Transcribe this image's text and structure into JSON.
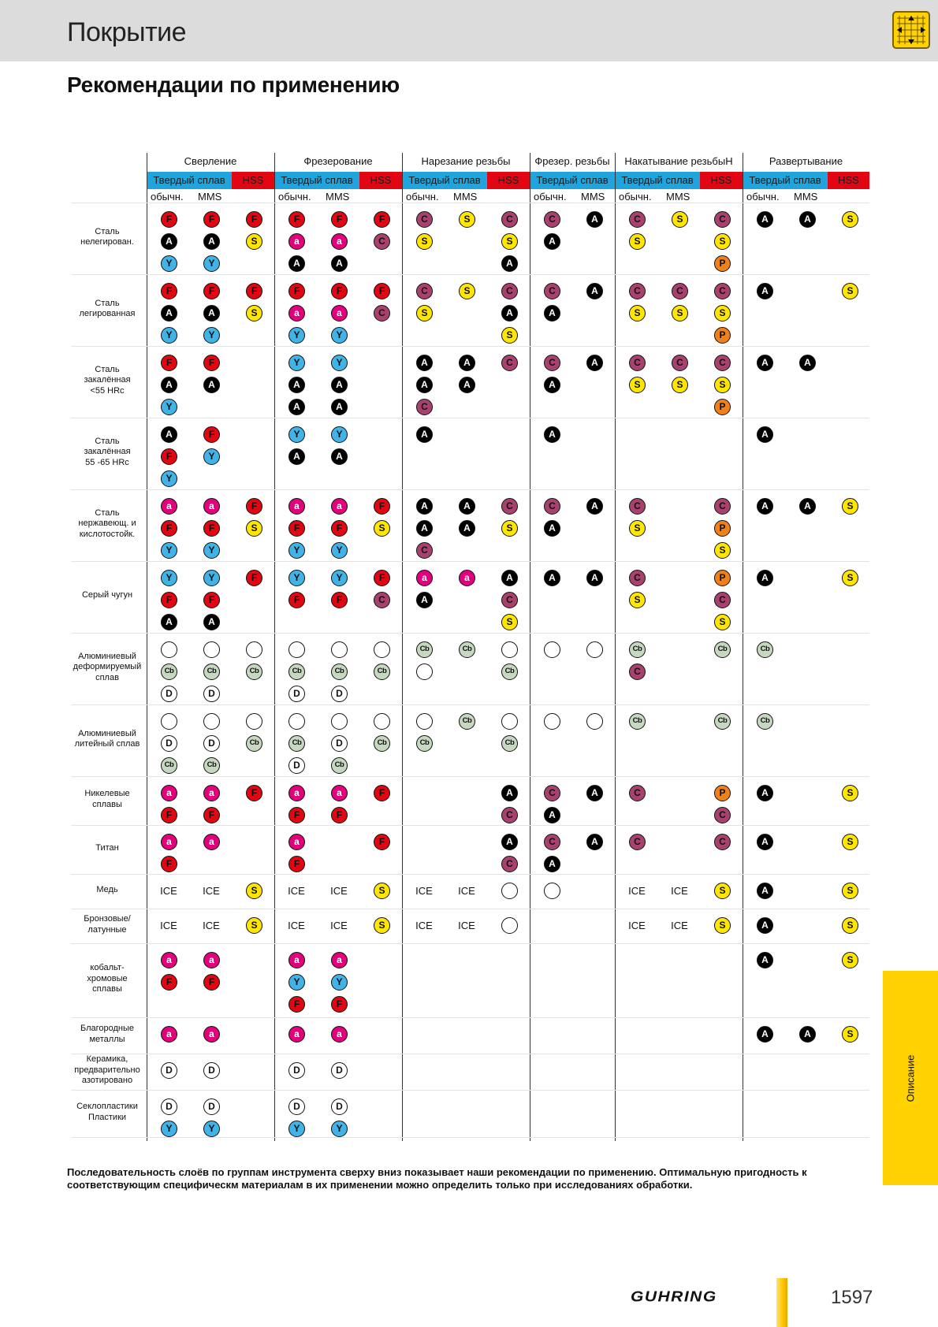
{
  "header": {
    "section_title": "Покрытие",
    "heading": "Рекомендации по применению",
    "icon": "grid-tool-icon"
  },
  "column_groups": [
    {
      "label": "Сверление",
      "subheaders": [
        "Твердый сплав",
        "HSS"
      ]
    },
    {
      "label": "Фрезерование",
      "subheaders": [
        "Твердый сплав",
        "HSS"
      ]
    },
    {
      "label": "Нарезание резьбы",
      "subheaders": [
        "Твердый сплав",
        "HSS"
      ]
    },
    {
      "label": "Фрезер. резьбы",
      "subheaders": [
        "Твердый сплав"
      ]
    },
    {
      "label": "Накатывание резьбыН",
      "subheaders": [
        "Твердый сплав",
        "HSS"
      ]
    },
    {
      "label": "Развертывание",
      "subheaders": [
        "Твердый сплав",
        "HSS"
      ]
    }
  ],
  "coolant_labels": {
    "normal": "обычн.",
    "mms": "MMS"
  },
  "coating_colors": {
    "F": {
      "bg": "#e20613",
      "fg": "#111111"
    },
    "A": {
      "bg": "#000000",
      "fg": "#ffffff"
    },
    "a": {
      "bg": "#e3007d",
      "fg": "#ffffff"
    },
    "Y": {
      "bg": "#41b3e6",
      "fg": "#111111"
    },
    "S": {
      "bg": "#ffe600",
      "fg": "#111111"
    },
    "C": {
      "bg": "#a9416e",
      "fg": "#111111"
    },
    "P": {
      "bg": "#f08019",
      "fg": "#111111"
    },
    "Cb": {
      "bg": "#c6d8bf",
      "fg": "#111111"
    },
    "D": {
      "bg": "#ffffff",
      "fg": "#111111"
    },
    "O": {
      "bg": "#ffffff",
      "fg": "#111111"
    }
  },
  "rows": [
    {
      "material": "Сталь\nнелегирован.",
      "cells": [
        [
          "F",
          "A",
          "Y"
        ],
        [
          "F",
          "A",
          "Y"
        ],
        [
          "F",
          "S"
        ],
        [
          "F",
          "a",
          "A"
        ],
        [
          "F",
          "a",
          "A"
        ],
        [
          "F",
          "C"
        ],
        [
          "C",
          "S"
        ],
        [
          "S"
        ],
        [
          "C",
          "S",
          "A"
        ],
        [
          "C",
          "A"
        ],
        [
          "A"
        ],
        [
          "C",
          "S"
        ],
        [
          "S"
        ],
        [
          "C",
          "S",
          "P"
        ],
        [
          "A"
        ],
        [
          "A"
        ],
        [
          "S"
        ]
      ]
    },
    {
      "material": "Сталь\nлегированная",
      "cells": [
        [
          "F",
          "A",
          "Y"
        ],
        [
          "F",
          "A",
          "Y"
        ],
        [
          "F",
          "S"
        ],
        [
          "F",
          "a",
          "Y"
        ],
        [
          "F",
          "a",
          "Y"
        ],
        [
          "F",
          "C"
        ],
        [
          "C",
          "S"
        ],
        [
          "S"
        ],
        [
          "C",
          "A",
          "S"
        ],
        [
          "C",
          "A"
        ],
        [
          "A"
        ],
        [
          "C",
          "S"
        ],
        [
          "C",
          "S"
        ],
        [
          "C",
          "S",
          "P"
        ],
        [
          "A"
        ],
        [],
        [
          "S"
        ]
      ]
    },
    {
      "material": "Сталь\nзакалённая\n<55 HRc",
      "cells": [
        [
          "F",
          "A",
          "Y"
        ],
        [
          "F",
          "A"
        ],
        [],
        [
          "Y",
          "A",
          "A"
        ],
        [
          "Y",
          "A",
          "A"
        ],
        [],
        [
          "A",
          "A",
          "C"
        ],
        [
          "A",
          "A"
        ],
        [
          "C"
        ],
        [
          "C",
          "A"
        ],
        [
          "A"
        ],
        [
          "C",
          "S"
        ],
        [
          "C",
          "S"
        ],
        [
          "C",
          "S",
          "P"
        ],
        [
          "A"
        ],
        [
          "A"
        ],
        []
      ]
    },
    {
      "material": "Сталь\nзакалённая\n55 -65 HRc",
      "cells": [
        [
          "A",
          "F",
          "Y"
        ],
        [
          "F",
          "Y"
        ],
        [],
        [
          "Y",
          "A"
        ],
        [
          "Y",
          "A"
        ],
        [],
        [
          "A"
        ],
        [],
        [],
        [
          "A"
        ],
        [],
        [],
        [],
        [],
        [
          "A"
        ],
        [],
        []
      ]
    },
    {
      "material": "Сталь\nнержавеющ. и\nкислотостойк.",
      "cells": [
        [
          "a",
          "F",
          "Y"
        ],
        [
          "a",
          "F",
          "Y"
        ],
        [
          "F",
          "S"
        ],
        [
          "a",
          "F",
          "Y"
        ],
        [
          "a",
          "F",
          "Y"
        ],
        [
          "F",
          "S"
        ],
        [
          "A",
          "A",
          "C"
        ],
        [
          "A",
          "A"
        ],
        [
          "C",
          "S"
        ],
        [
          "C",
          "A"
        ],
        [
          "A"
        ],
        [
          "C",
          "S"
        ],
        [],
        [
          "C",
          "P",
          "S"
        ],
        [
          "A"
        ],
        [
          "A"
        ],
        [
          "S"
        ]
      ]
    },
    {
      "material": "Серый чугун",
      "cells": [
        [
          "Y",
          "F",
          "A"
        ],
        [
          "Y",
          "F",
          "A"
        ],
        [
          "F"
        ],
        [
          "Y",
          "F"
        ],
        [
          "Y",
          "F"
        ],
        [
          "F",
          "C"
        ],
        [
          "a",
          "A"
        ],
        [
          "a"
        ],
        [
          "A",
          "C",
          "S"
        ],
        [
          "A"
        ],
        [
          "A"
        ],
        [
          "C",
          "S"
        ],
        [],
        [
          "P",
          "C",
          "S"
        ],
        [
          "A"
        ],
        [],
        [
          "S"
        ]
      ]
    },
    {
      "material": "Алюминиевый\nдеформируемый\nсплав",
      "cells": [
        [
          "O",
          "Cb",
          "D"
        ],
        [
          "O",
          "Cb",
          "D"
        ],
        [
          "O",
          "Cb"
        ],
        [
          "O",
          "Cb",
          "D"
        ],
        [
          "O",
          "Cb",
          "D"
        ],
        [
          "O",
          "Cb"
        ],
        [
          "Cb",
          "O"
        ],
        [
          "Cb"
        ],
        [
          "O",
          "Cb"
        ],
        [
          "O"
        ],
        [
          "O"
        ],
        [
          "Cb",
          "C"
        ],
        [],
        [
          "Cb"
        ],
        [
          "Cb"
        ],
        [],
        []
      ]
    },
    {
      "material": "Алюминиевый\nлитейный сплав",
      "cells": [
        [
          "O",
          "D",
          "Cb"
        ],
        [
          "O",
          "D",
          "Cb"
        ],
        [
          "O",
          "Cb"
        ],
        [
          "O",
          "Cb",
          "D"
        ],
        [
          "O",
          "D",
          "Cb"
        ],
        [
          "O",
          "Cb"
        ],
        [
          "O",
          "Cb"
        ],
        [
          "Cb"
        ],
        [
          "O",
          "Cb"
        ],
        [
          "O"
        ],
        [
          "O"
        ],
        [
          "Cb"
        ],
        [],
        [
          "Cb"
        ],
        [
          "Cb"
        ],
        [],
        []
      ]
    },
    {
      "material": "Никелевые\nсплавы",
      "cells": [
        [
          "a",
          "F"
        ],
        [
          "a",
          "F"
        ],
        [
          "F"
        ],
        [
          "a",
          "F"
        ],
        [
          "a",
          "F"
        ],
        [
          "F"
        ],
        [],
        [],
        [
          "A",
          "C"
        ],
        [
          "C",
          "A"
        ],
        [
          "A"
        ],
        [
          "C"
        ],
        [],
        [
          "P",
          "C"
        ],
        [
          "A"
        ],
        [],
        [
          "S"
        ]
      ]
    },
    {
      "material": "Титан",
      "cells": [
        [
          "a",
          "F"
        ],
        [
          "a"
        ],
        [],
        [
          "a",
          "F"
        ],
        [],
        [
          "F"
        ],
        [],
        [],
        [
          "A",
          "C"
        ],
        [
          "C",
          "A"
        ],
        [
          "A"
        ],
        [
          "C"
        ],
        [],
        [
          "C"
        ],
        [
          "A"
        ],
        [],
        [
          "S"
        ]
      ]
    },
    {
      "material": "Медь",
      "cells": [
        [
          "ICE"
        ],
        [
          "ICE"
        ],
        [
          "S"
        ],
        [
          "ICE"
        ],
        [
          "ICE"
        ],
        [
          "S"
        ],
        [
          "ICE"
        ],
        [
          "ICE"
        ],
        [
          "O"
        ],
        [
          "O"
        ],
        [],
        [
          "ICE"
        ],
        [
          "ICE"
        ],
        [
          "S"
        ],
        [
          "A"
        ],
        [],
        [
          "S"
        ]
      ]
    },
    {
      "material": "Бронзовые/\nлатунные",
      "cells": [
        [
          "ICE"
        ],
        [
          "ICE"
        ],
        [
          "S"
        ],
        [
          "ICE"
        ],
        [
          "ICE"
        ],
        [
          "S"
        ],
        [
          "ICE"
        ],
        [
          "ICE"
        ],
        [
          "O"
        ],
        [],
        [],
        [
          "ICE"
        ],
        [
          "ICE"
        ],
        [
          "S"
        ],
        [
          "A"
        ],
        [],
        [
          "S"
        ]
      ]
    },
    {
      "material": "кобальт-\nхромовые\nсплавы",
      "cells": [
        [
          "a",
          "F"
        ],
        [
          "a",
          "F"
        ],
        [],
        [
          "a",
          "Y",
          "F"
        ],
        [
          "a",
          "Y",
          "F"
        ],
        [],
        [],
        [],
        [],
        [],
        [],
        [],
        [],
        [],
        [
          "A"
        ],
        [],
        [
          "S"
        ]
      ]
    },
    {
      "material": "Благородные\nметаллы",
      "cells": [
        [
          "a"
        ],
        [
          "a"
        ],
        [],
        [
          "a"
        ],
        [
          "a"
        ],
        [],
        [],
        [],
        [],
        [],
        [],
        [],
        [],
        [],
        [
          "A"
        ],
        [
          "A"
        ],
        [
          "S"
        ]
      ]
    },
    {
      "material": "Керамика,\nпредварительно\nазотировано",
      "cells": [
        [
          "D"
        ],
        [
          "D"
        ],
        [],
        [
          "D"
        ],
        [
          "D"
        ],
        [],
        [],
        [],
        [],
        [],
        [],
        [],
        [],
        [],
        [],
        [],
        []
      ]
    },
    {
      "material": "Секлопластики\nПластики",
      "cells": [
        [
          "D",
          "Y"
        ],
        [
          "D",
          "Y"
        ],
        [],
        [
          "D",
          "Y"
        ],
        [
          "D",
          "Y"
        ],
        [],
        [],
        [],
        [],
        [],
        [],
        [],
        [],
        [],
        [],
        [],
        []
      ]
    }
  ],
  "footnote": "Последовательность слоёв по группам инструмента сверху вниз показывает наши рекомендации по применению. Оптимальную пригодность к соответствующим специфическм материалам в их применении можно определить только при исследованиях обработки.",
  "side_tab": {
    "label": "Описание"
  },
  "footer": {
    "brand": "GUHRING",
    "page_number": "1597"
  }
}
